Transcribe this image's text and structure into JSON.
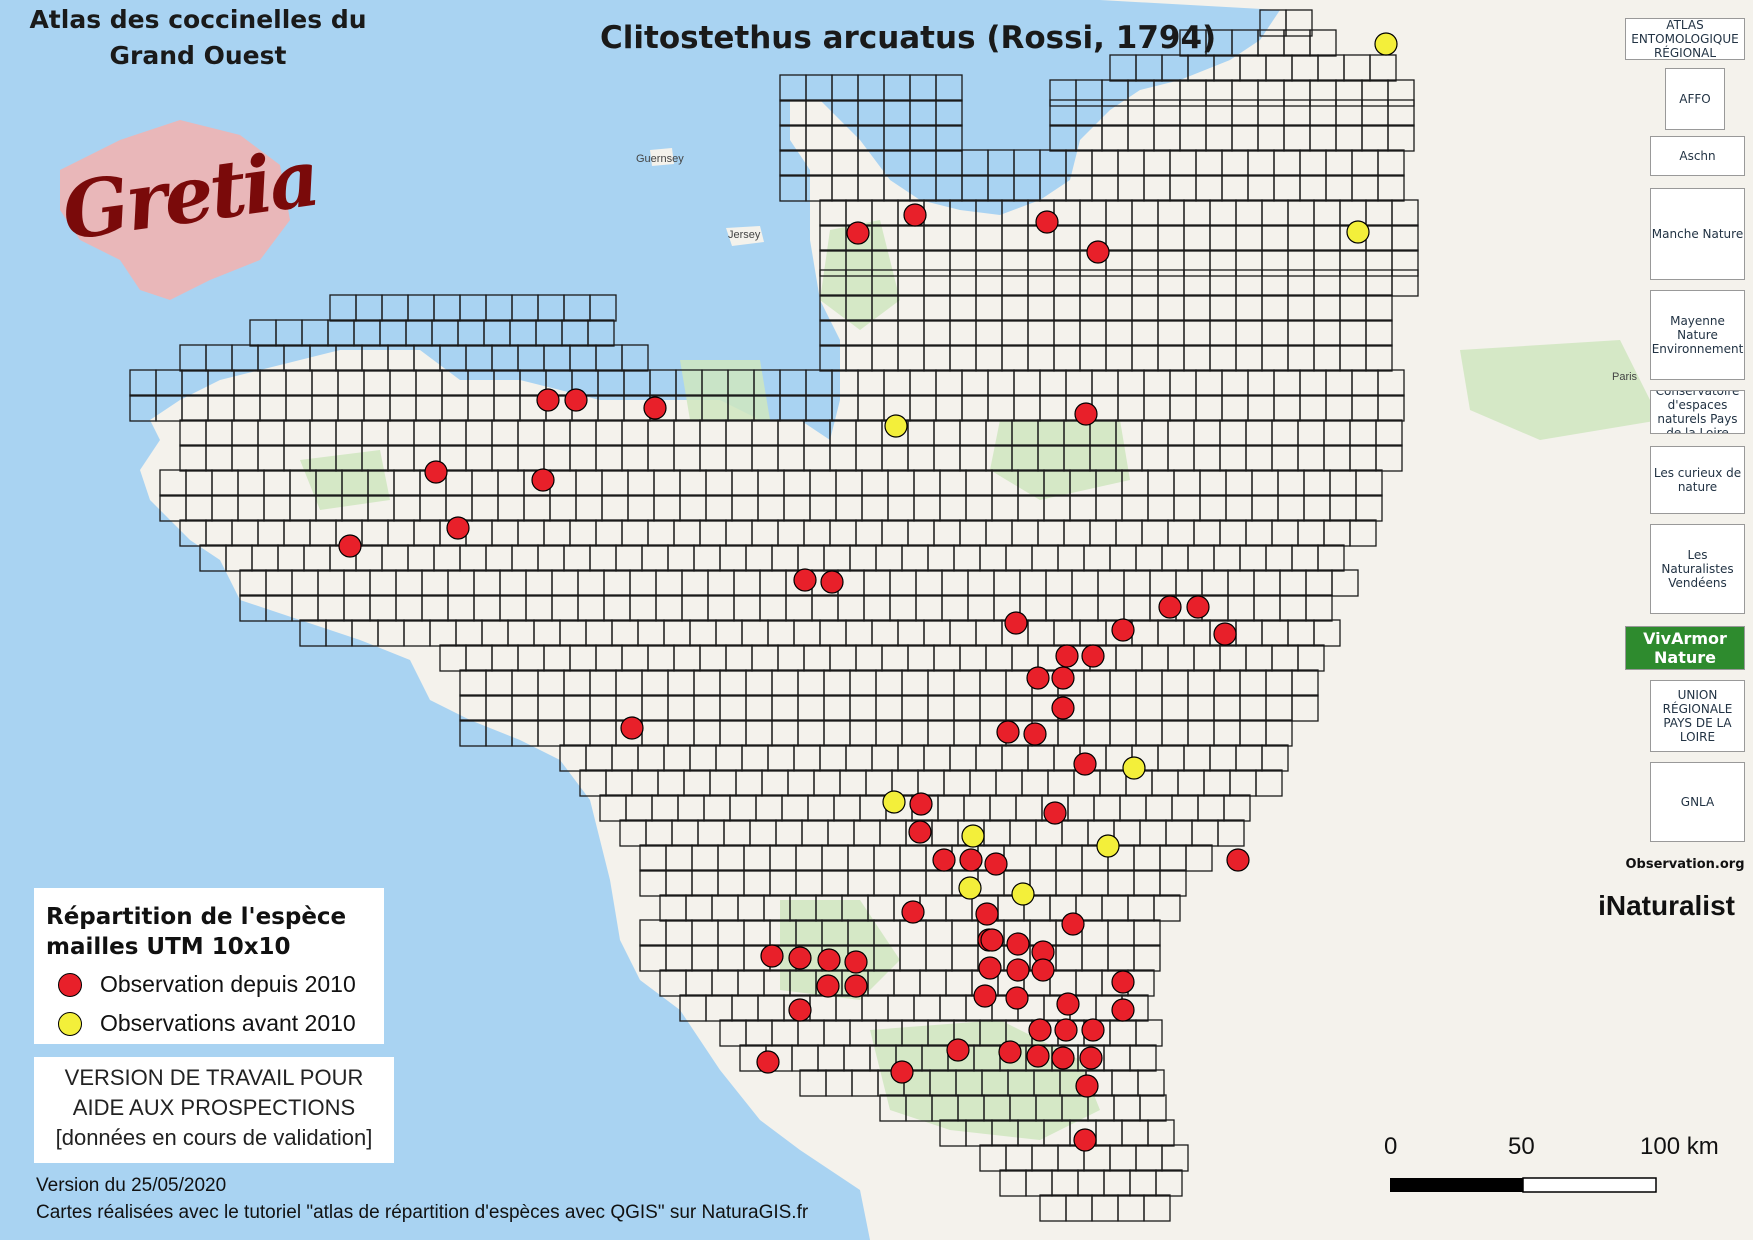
{
  "header": {
    "atlas_title_line1": "Atlas des coccinelles du",
    "atlas_title_line2": "Grand Ouest",
    "species_title": "Clitostethus arcuatus (Rossi, 1794)",
    "brand_logo_text": "Gretia"
  },
  "legend": {
    "title_line1": "Répartition de l'espèce",
    "title_line2": "mailles UTM 10x10",
    "items": [
      {
        "label": "Observation depuis 2010",
        "color": "#e8202a"
      },
      {
        "label": "Observations avant 2010",
        "color": "#f3ef3a"
      }
    ]
  },
  "notice": {
    "line1": "VERSION DE TRAVAIL POUR",
    "line2": "AIDE AUX PROSPECTIONS",
    "line3": "[données en cours de validation]"
  },
  "footer": {
    "version": "Version du 25/05/2020",
    "credits": "Cartes réalisées avec le tutoriel \"atlas de répartition d'espèces avec QGIS\" sur NaturaGIS.fr"
  },
  "scale_bar": {
    "labels": [
      "0",
      "50",
      "100 km"
    ]
  },
  "map_labels": {
    "guernsey": "Guernsey",
    "jersey": "Jersey",
    "paris": "Paris"
  },
  "partner_logos": [
    {
      "name": "ATLAS ENTOMOLOGIQUE RÉGIONAL"
    },
    {
      "name": "AFFO"
    },
    {
      "name": "Aschn"
    },
    {
      "name": "Manche Nature"
    },
    {
      "name": "Mayenne Nature Environnement"
    },
    {
      "name": "Conservatoire d'espaces naturels Pays de la Loire"
    },
    {
      "name": "Les curieux de nature"
    },
    {
      "name": "Les Naturalistes Vendéens"
    },
    {
      "name": "VivArmor Nature"
    },
    {
      "name": "UNION RÉGIONALE PAYS DE LA LOIRE"
    },
    {
      "name": "GNLA"
    },
    {
      "name": "Observation.org"
    }
  ],
  "inaturalist_label": "iNaturalist",
  "colors": {
    "sea": "#a9d3f2",
    "land": "#f4f2ec",
    "forest": "#cfe6c0",
    "grid": "#1a1a1a",
    "recent": "#e8202a",
    "old": "#f3ef3a"
  }
}
